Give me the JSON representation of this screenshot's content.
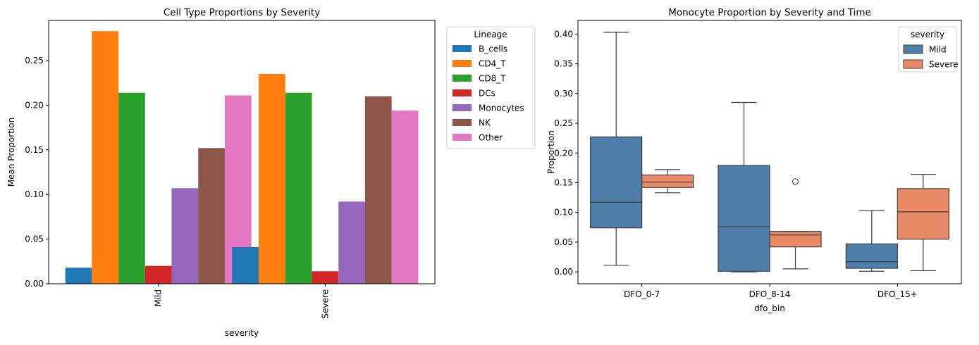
{
  "chart_data": [
    {
      "type": "bar",
      "title": "Cell Type Proportions by Severity",
      "xlabel": "severity",
      "ylabel": "Mean Proportion",
      "ylim": [
        0,
        0.295
      ],
      "yticks": [
        "0.00",
        "0.05",
        "0.10",
        "0.15",
        "0.20",
        "0.25"
      ],
      "categories": [
        "Mild",
        "Severe"
      ],
      "legend": {
        "title": "Lineage",
        "placement": "outside-right"
      },
      "series": [
        {
          "name": "B_cells",
          "color": "#1f77b4",
          "values": [
            0.018,
            0.041
          ]
        },
        {
          "name": "CD4_T",
          "color": "#ff7f0e",
          "values": [
            0.283,
            0.235
          ]
        },
        {
          "name": "CD8_T",
          "color": "#2ca02c",
          "values": [
            0.214,
            0.214
          ]
        },
        {
          "name": "DCs",
          "color": "#d62728",
          "values": [
            0.02,
            0.014
          ]
        },
        {
          "name": "Monocytes",
          "color": "#9467bd",
          "values": [
            0.107,
            0.092
          ]
        },
        {
          "name": "NK",
          "color": "#8c564b",
          "values": [
            0.152,
            0.21
          ]
        },
        {
          "name": "Other",
          "color": "#e377c2",
          "values": [
            0.211,
            0.194
          ]
        }
      ]
    },
    {
      "type": "box",
      "title": "Monocyte Proportion by Severity and Time",
      "xlabel": "dfo_bin",
      "ylabel": "Proportion",
      "ylim": [
        -0.02,
        0.423
      ],
      "yticks": [
        "0.00",
        "0.05",
        "0.10",
        "0.15",
        "0.20",
        "0.25",
        "0.30",
        "0.35",
        "0.40"
      ],
      "categories": [
        "DFO_0-7",
        "DFO_8-14",
        "DFO_15+"
      ],
      "legend": {
        "title": "severity",
        "placement": "top-right"
      },
      "series": [
        {
          "name": "Mild",
          "color": "#4f7fa8",
          "boxes": [
            {
              "min": 0.011,
              "q1": 0.074,
              "median": 0.117,
              "q3": 0.227,
              "max": 0.403,
              "outliers": []
            },
            {
              "min": 0.0,
              "q1": 0.001,
              "median": 0.076,
              "q3": 0.179,
              "max": 0.285,
              "outliers": []
            },
            {
              "min": 0.001,
              "q1": 0.006,
              "median": 0.017,
              "q3": 0.047,
              "max": 0.103,
              "outliers": []
            }
          ]
        },
        {
          "name": "Severe",
          "color": "#ea8a66",
          "boxes": [
            {
              "min": 0.133,
              "q1": 0.142,
              "median": 0.151,
              "q3": 0.163,
              "max": 0.172,
              "outliers": []
            },
            {
              "min": 0.005,
              "q1": 0.042,
              "median": 0.062,
              "q3": 0.068,
              "max": 0.068,
              "outliers": [
                0.152
              ]
            },
            {
              "min": 0.002,
              "q1": 0.055,
              "median": 0.101,
              "q3": 0.14,
              "max": 0.164,
              "outliers": []
            }
          ]
        }
      ]
    }
  ]
}
